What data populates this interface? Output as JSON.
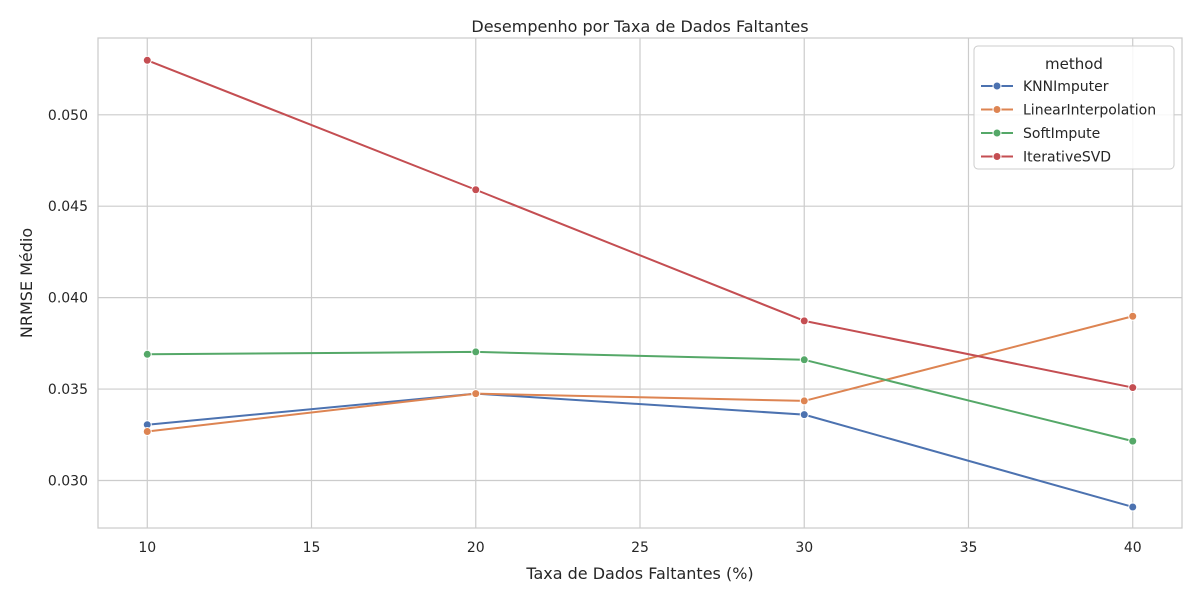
{
  "chart_data": {
    "type": "line",
    "title": "Desempenho por Taxa de Dados Faltantes",
    "xlabel": "Taxa de Dados Faltantes (%)",
    "ylabel": "NRMSE Médio",
    "x": [
      10,
      20,
      30,
      40
    ],
    "xlim": [
      8.5,
      41.5
    ],
    "ylim": [
      0.0274,
      0.0542
    ],
    "xticks": [
      10,
      15,
      20,
      25,
      30,
      35,
      40
    ],
    "yticks": [
      0.03,
      0.035,
      0.04,
      0.045,
      0.05
    ],
    "xtick_labels": [
      "10",
      "15",
      "20",
      "25",
      "30",
      "35",
      "40"
    ],
    "ytick_labels": [
      "0.030",
      "0.035",
      "0.040",
      "0.045",
      "0.050"
    ],
    "grid": true,
    "legend": {
      "title": "method",
      "placement": "top-right"
    },
    "series": [
      {
        "name": "KNNImputer",
        "color": "#4c72b0",
        "values": [
          0.03305,
          0.03475,
          0.0336,
          0.02855
        ]
      },
      {
        "name": "LinearInterpolation",
        "color": "#dd8452",
        "values": [
          0.03268,
          0.03475,
          0.03435,
          0.03898
        ]
      },
      {
        "name": "SoftImpute",
        "color": "#55a868",
        "values": [
          0.0369,
          0.03703,
          0.0366,
          0.03215
        ]
      },
      {
        "name": "IterativeSVD",
        "color": "#c44e52",
        "values": [
          0.05298,
          0.0459,
          0.03873,
          0.03508
        ]
      }
    ]
  }
}
